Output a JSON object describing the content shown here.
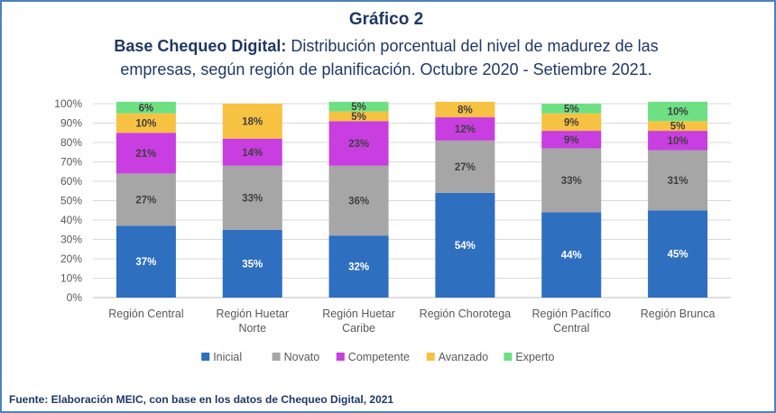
{
  "header": {
    "title": "Gráfico 2",
    "subtitle_bold": "Base Chequeo Digital:",
    "subtitle_line1": " Distribución porcentual del nivel de madurez de las",
    "subtitle_line2": "empresas, según región de planificación. Octubre 2020 - Setiembre 2021."
  },
  "chart_data": {
    "type": "bar",
    "stacked": true,
    "categories": [
      [
        "Región Central"
      ],
      [
        "Región Huetar",
        "Norte"
      ],
      [
        "Región Huetar",
        "Caribe"
      ],
      [
        "Región Chorotega"
      ],
      [
        "Región Pacífico",
        "Central"
      ],
      [
        "Región Brunca"
      ]
    ],
    "series": [
      {
        "name": "Inicial",
        "color": "#2e6fc0",
        "values": [
          37,
          35,
          32,
          54,
          44,
          45
        ]
      },
      {
        "name": "Novato",
        "color": "#a6a6a6",
        "values": [
          27,
          33,
          36,
          27,
          33,
          31
        ]
      },
      {
        "name": "Competente",
        "color": "#c83ee0",
        "values": [
          21,
          14,
          23,
          12,
          9,
          10
        ]
      },
      {
        "name": "Avanzado",
        "color": "#f7c142",
        "values": [
          10,
          18,
          5,
          8,
          9,
          5
        ]
      },
      {
        "name": "Experto",
        "color": "#6de084",
        "values": [
          6,
          0,
          5,
          0,
          5,
          10
        ]
      }
    ],
    "data_labels": [
      [
        "37%",
        "27%",
        "21%",
        "10%",
        "6%"
      ],
      [
        "35%",
        "33%",
        "14%",
        "18%",
        ""
      ],
      [
        "32%",
        "36%",
        "23%",
        "5%",
        "5%"
      ],
      [
        "54%",
        "27%",
        "12%",
        "8%",
        ""
      ],
      [
        "44%",
        "33%",
        "9%",
        "9%",
        "5%"
      ],
      [
        "45%",
        "31%",
        "10%",
        "5%",
        "10%"
      ]
    ],
    "y_ticks": [
      "0%",
      "10%",
      "20%",
      "30%",
      "40%",
      "50%",
      "60%",
      "70%",
      "80%",
      "90%",
      "100%"
    ],
    "ylim": [
      0,
      100
    ],
    "grid": true,
    "legend_position": "bottom"
  },
  "source": "Fuente: Elaboración MEIC, con base en los datos de Chequeo Digital, 2021"
}
